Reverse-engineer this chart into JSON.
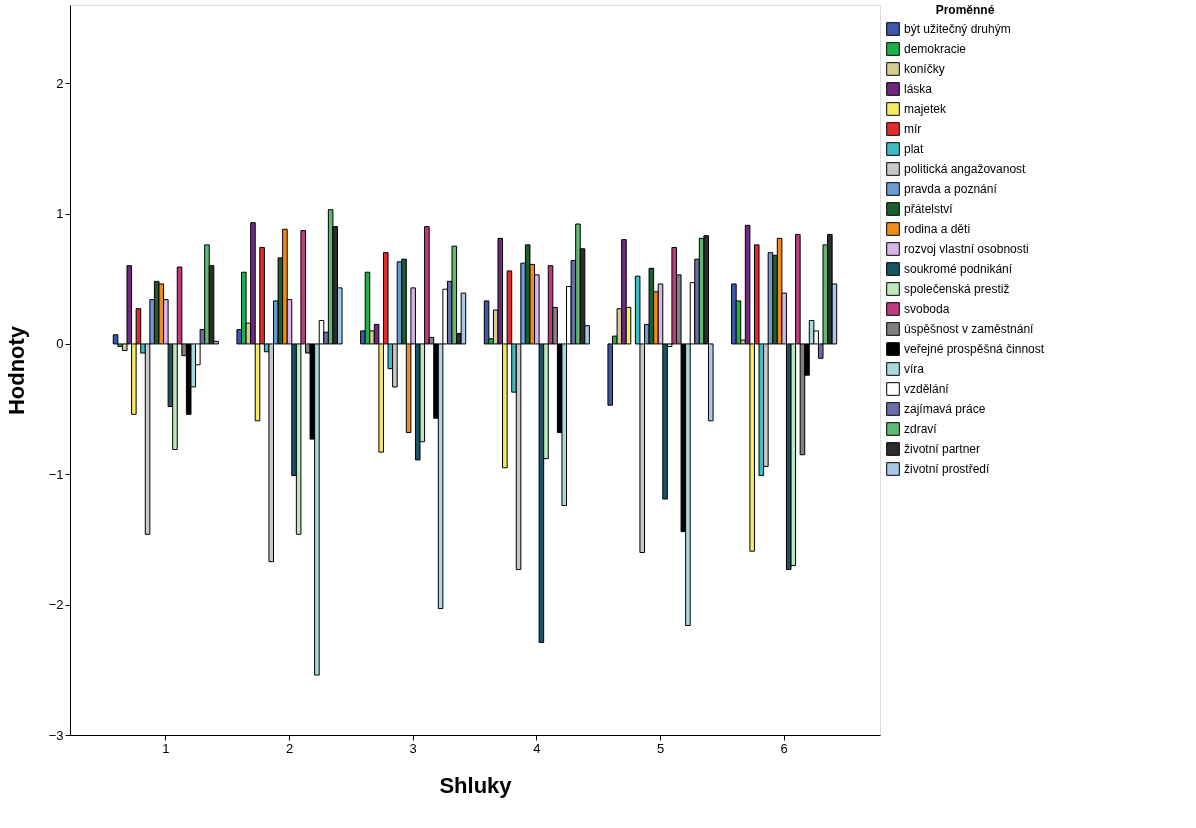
{
  "chart_data": {
    "type": "bar",
    "xlabel": "Shluky",
    "ylabel": "Hodnoty",
    "legend_title": "Proměnné",
    "legend": "right",
    "grid": false,
    "categories": [
      "1",
      "2",
      "3",
      "4",
      "5",
      "6"
    ],
    "ylim": [
      -3,
      2.6
    ],
    "yticks": [
      -3,
      -2,
      -1,
      0,
      1,
      2
    ],
    "series": [
      {
        "name": "být užitečný druhým",
        "color": "#3e58ac",
        "values": [
          0.07,
          0.11,
          0.1,
          0.33,
          -0.47,
          0.46
        ]
      },
      {
        "name": "demokracie",
        "color": "#1fb04a",
        "values": [
          -0.02,
          0.55,
          0.55,
          0.04,
          0.06,
          0.33
        ]
      },
      {
        "name": "koníčky",
        "color": "#d4cc95",
        "values": [
          -0.05,
          0.16,
          0.1,
          0.26,
          0.27,
          0.03
        ]
      },
      {
        "name": "láska",
        "color": "#6f2a80",
        "values": [
          0.6,
          0.93,
          0.15,
          0.81,
          0.8,
          0.91
        ]
      },
      {
        "name": "majetek",
        "color": "#f4ea65",
        "values": [
          -0.54,
          -0.59,
          -0.83,
          -0.95,
          0.28,
          -1.59
        ]
      },
      {
        "name": "mír",
        "color": "#e32b2b",
        "values": [
          0.27,
          0.74,
          0.7,
          0.56,
          null,
          0.76
        ]
      },
      {
        "name": "plat",
        "color": "#3ebcc2",
        "values": [
          -0.07,
          -0.06,
          -0.19,
          -0.37,
          0.52,
          -1.01
        ]
      },
      {
        "name": "politická angažovanost",
        "color": "#c8c8c8",
        "values": [
          -1.46,
          -1.67,
          -0.33,
          -1.73,
          -1.6,
          -0.94
        ]
      },
      {
        "name": "pravda a poznání",
        "color": "#6b9bd1",
        "values": [
          0.34,
          0.33,
          0.63,
          0.62,
          0.15,
          0.7
        ]
      },
      {
        "name": "přátelství",
        "color": "#1d5e2f",
        "values": [
          0.48,
          0.66,
          0.65,
          0.76,
          0.58,
          0.68
        ]
      },
      {
        "name": "rodina a děti",
        "color": "#f08c1a",
        "values": [
          0.46,
          0.88,
          -0.68,
          0.61,
          0.4,
          0.81
        ]
      },
      {
        "name": "rozvoj vlastní osobnosti",
        "color": "#d7b5e8",
        "values": [
          0.34,
          0.34,
          0.43,
          0.53,
          0.46,
          0.39
        ]
      },
      {
        "name": "soukromé podnikání",
        "color": "#1a5467",
        "values": [
          -0.48,
          -1.01,
          -0.89,
          -2.29,
          -1.19,
          -1.73
        ]
      },
      {
        "name": "společenská prestiž",
        "color": "#bfe8bc",
        "values": [
          -0.81,
          -1.46,
          -0.75,
          -0.88,
          -0.02,
          -1.7
        ]
      },
      {
        "name": "svoboda",
        "color": "#bd3b7b",
        "values": [
          0.59,
          0.87,
          0.9,
          0.6,
          0.74,
          0.84
        ]
      },
      {
        "name": "úspěšnost v zaměstnání",
        "color": "#808080",
        "values": [
          -0.09,
          -0.07,
          0.05,
          0.28,
          0.53,
          -0.85
        ]
      },
      {
        "name": "veřejné prospěšná činnost",
        "color": "#000000",
        "values": [
          -0.54,
          -0.73,
          -0.57,
          -0.68,
          -1.44,
          -0.24
        ]
      },
      {
        "name": "víra",
        "color": "#a8d9dc",
        "values": [
          -0.33,
          -2.54,
          -2.03,
          -1.24,
          -2.16,
          0.18
        ]
      },
      {
        "name": "vzdělání",
        "color": "#ffffff",
        "values": [
          -0.16,
          0.18,
          0.42,
          0.44,
          0.47,
          0.1
        ]
      },
      {
        "name": "zajímavá práce",
        "color": "#6a6ea6",
        "values": [
          0.11,
          0.09,
          0.48,
          0.64,
          0.65,
          -0.11
        ]
      },
      {
        "name": "zdraví",
        "color": "#5dba6e",
        "values": [
          0.76,
          1.03,
          0.75,
          0.92,
          0.81,
          0.76
        ]
      },
      {
        "name": "životní partner",
        "color": "#2d2d2d",
        "values": [
          0.6,
          0.9,
          0.08,
          0.73,
          0.83,
          0.84
        ]
      },
      {
        "name": "životní prostředí",
        "color": "#a7c8ea",
        "values": [
          0.02,
          0.43,
          0.39,
          0.14,
          -0.59,
          0.46
        ]
      }
    ]
  }
}
